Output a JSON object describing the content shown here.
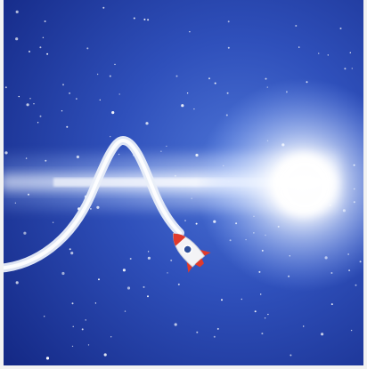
{
  "scene": {
    "colors": {
      "space_light": "#3f63c9",
      "space_mid": "#2a49b5",
      "space_dark": "#142a86",
      "beam_white": "#ffffff",
      "beam_blue": "#bcd2ff",
      "trail": "#e9eef8",
      "rocket_body": "#f3f3f6",
      "rocket_red": "#e03a2c",
      "rocket_window": "#2e4f9a",
      "frame_edge": "#f2f2f2"
    },
    "icons": [
      "rocket-icon",
      "star-icon"
    ]
  }
}
